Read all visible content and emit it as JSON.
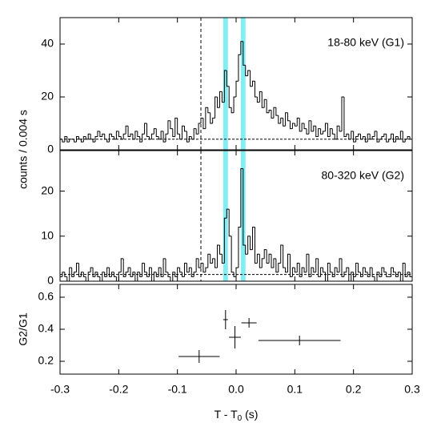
{
  "chart_data": [
    {
      "type": "histogram",
      "label": "18-80 keV (G1)",
      "ylabel": "counts / 0.004 s",
      "color": "#000000",
      "band_color": "#80eef2",
      "bands": [
        [
          -0.022,
          -0.014
        ],
        [
          0.008,
          0.016
        ]
      ],
      "vline": -0.06,
      "baseline": 4,
      "xlim": [
        -0.3,
        0.3
      ],
      "xticks": [
        -0.3,
        -0.2,
        -0.1,
        0,
        0.1,
        0.2,
        0.3
      ],
      "ylim": [
        0,
        50
      ],
      "yticks": [
        0,
        20,
        40
      ],
      "bins": [
        -0.3,
        -0.296,
        -0.292,
        -0.288,
        -0.284,
        -0.28,
        -0.276,
        -0.272,
        -0.268,
        -0.264,
        -0.26,
        -0.256,
        -0.252,
        -0.248,
        -0.244,
        -0.24,
        -0.236,
        -0.232,
        -0.228,
        -0.224,
        -0.22,
        -0.216,
        -0.212,
        -0.208,
        -0.204,
        -0.2,
        -0.196,
        -0.192,
        -0.188,
        -0.184,
        -0.18,
        -0.176,
        -0.172,
        -0.168,
        -0.164,
        -0.16,
        -0.156,
        -0.152,
        -0.148,
        -0.144,
        -0.14,
        -0.136,
        -0.132,
        -0.128,
        -0.124,
        -0.12,
        -0.116,
        -0.112,
        -0.108,
        -0.104,
        -0.1,
        -0.096,
        -0.092,
        -0.088,
        -0.084,
        -0.08,
        -0.076,
        -0.072,
        -0.068,
        -0.064,
        -0.06,
        -0.056,
        -0.052,
        -0.048,
        -0.044,
        -0.04,
        -0.036,
        -0.032,
        -0.028,
        -0.024,
        -0.02,
        -0.016,
        -0.012,
        -0.008,
        -0.004,
        0,
        0.004,
        0.008,
        0.012,
        0.016,
        0.02,
        0.024,
        0.028,
        0.032,
        0.036,
        0.04,
        0.044,
        0.048,
        0.052,
        0.056,
        0.06,
        0.064,
        0.068,
        0.072,
        0.076,
        0.08,
        0.084,
        0.088,
        0.092,
        0.096,
        0.1,
        0.104,
        0.108,
        0.112,
        0.116,
        0.12,
        0.124,
        0.128,
        0.132,
        0.136,
        0.14,
        0.144,
        0.148,
        0.152,
        0.156,
        0.16,
        0.164,
        0.168,
        0.172,
        0.176,
        0.18,
        0.184,
        0.188,
        0.192,
        0.196,
        0.2,
        0.204,
        0.208,
        0.212,
        0.216,
        0.22,
        0.224,
        0.228,
        0.232,
        0.236,
        0.24,
        0.244,
        0.248,
        0.252,
        0.256,
        0.26,
        0.264,
        0.268,
        0.272,
        0.276,
        0.28,
        0.284,
        0.288,
        0.292,
        0.296,
        0.3
      ],
      "values": [
        4,
        3,
        5,
        3,
        4,
        4,
        3,
        5,
        4,
        3,
        5,
        4,
        6,
        4,
        3,
        5,
        7,
        5,
        6,
        4,
        3,
        6,
        5,
        4,
        7,
        5,
        4,
        6,
        9,
        5,
        6,
        4,
        7,
        5,
        3,
        6,
        10,
        5,
        4,
        6,
        8,
        5,
        4,
        7,
        3,
        6,
        11,
        8,
        5,
        12,
        6,
        4,
        9,
        7,
        3,
        5,
        4,
        8,
        6,
        10,
        12,
        8,
        16,
        14,
        10,
        12,
        20,
        16,
        22,
        18,
        30,
        24,
        16,
        14,
        20,
        26,
        36,
        41,
        32,
        28,
        30,
        24,
        26,
        20,
        18,
        22,
        16,
        19,
        14,
        15,
        12,
        16,
        13,
        10,
        12,
        9,
        14,
        11,
        8,
        10,
        9,
        12,
        7,
        10,
        8,
        6,
        11,
        7,
        9,
        5,
        8,
        6,
        7,
        10,
        5,
        8,
        6,
        4,
        9,
        7,
        20,
        5,
        6,
        4,
        7,
        3,
        5,
        6,
        4,
        5,
        3,
        6,
        4,
        5,
        7,
        3,
        4,
        5,
        6,
        3,
        4,
        6,
        3,
        5,
        4,
        7,
        3,
        4,
        5,
        4
      ]
    },
    {
      "type": "histogram",
      "label": "80-320 keV (G2)",
      "color": "#000000",
      "band_color": "#80eef2",
      "bands": [
        [
          -0.022,
          -0.014
        ],
        [
          0.008,
          0.016
        ]
      ],
      "vline": -0.06,
      "baseline": 1.5,
      "xlim": [
        -0.3,
        0.3
      ],
      "xticks": [
        -0.3,
        -0.2,
        -0.1,
        0,
        0.1,
        0.2,
        0.3
      ],
      "ylim": [
        0,
        29
      ],
      "yticks": [
        0,
        10,
        20
      ],
      "bins": [
        -0.3,
        -0.296,
        -0.292,
        -0.288,
        -0.284,
        -0.28,
        -0.276,
        -0.272,
        -0.268,
        -0.264,
        -0.26,
        -0.256,
        -0.252,
        -0.248,
        -0.244,
        -0.24,
        -0.236,
        -0.232,
        -0.228,
        -0.224,
        -0.22,
        -0.216,
        -0.212,
        -0.208,
        -0.204,
        -0.2,
        -0.196,
        -0.192,
        -0.188,
        -0.184,
        -0.18,
        -0.176,
        -0.172,
        -0.168,
        -0.164,
        -0.16,
        -0.156,
        -0.152,
        -0.148,
        -0.144,
        -0.14,
        -0.136,
        -0.132,
        -0.128,
        -0.124,
        -0.12,
        -0.116,
        -0.112,
        -0.108,
        -0.104,
        -0.1,
        -0.096,
        -0.092,
        -0.088,
        -0.084,
        -0.08,
        -0.076,
        -0.072,
        -0.068,
        -0.064,
        -0.06,
        -0.056,
        -0.052,
        -0.048,
        -0.044,
        -0.04,
        -0.036,
        -0.032,
        -0.028,
        -0.024,
        -0.02,
        -0.016,
        -0.012,
        -0.008,
        -0.004,
        0,
        0.004,
        0.008,
        0.012,
        0.016,
        0.02,
        0.024,
        0.028,
        0.032,
        0.036,
        0.04,
        0.044,
        0.048,
        0.052,
        0.056,
        0.06,
        0.064,
        0.068,
        0.072,
        0.076,
        0.08,
        0.084,
        0.088,
        0.092,
        0.096,
        0.1,
        0.104,
        0.108,
        0.112,
        0.116,
        0.12,
        0.124,
        0.128,
        0.132,
        0.136,
        0.14,
        0.144,
        0.148,
        0.152,
        0.156,
        0.16,
        0.164,
        0.168,
        0.172,
        0.176,
        0.18,
        0.184,
        0.188,
        0.192,
        0.196,
        0.2,
        0.204,
        0.208,
        0.212,
        0.216,
        0.22,
        0.224,
        0.228,
        0.232,
        0.236,
        0.24,
        0.244,
        0.248,
        0.252,
        0.256,
        0.26,
        0.264,
        0.268,
        0.272,
        0.276,
        0.28,
        0.284,
        0.288,
        0.292,
        0.296,
        0.3
      ],
      "values": [
        1,
        2,
        1,
        0,
        3,
        1,
        2,
        4,
        1,
        2,
        1,
        0,
        2,
        3,
        1,
        2,
        1,
        0,
        2,
        1,
        3,
        1,
        2,
        1,
        0,
        2,
        5,
        1,
        2,
        3,
        1,
        2,
        0,
        2,
        1,
        4,
        2,
        1,
        3,
        0,
        2,
        1,
        3,
        1,
        5,
        2,
        1,
        0,
        2,
        1,
        3,
        2,
        1,
        4,
        2,
        3,
        1,
        2,
        5,
        3,
        4,
        2,
        3,
        6,
        4,
        5,
        3,
        8,
        6,
        4,
        14,
        16,
        10,
        2,
        1,
        3,
        12,
        25,
        8,
        6,
        10,
        7,
        12,
        4,
        6,
        3,
        5,
        7,
        4,
        6,
        3,
        5,
        2,
        4,
        8,
        3,
        2,
        6,
        1,
        3,
        2,
        4,
        1,
        3,
        2,
        6,
        1,
        3,
        2,
        5,
        1,
        3,
        2,
        0,
        4,
        2,
        1,
        3,
        2,
        5,
        1,
        2,
        3,
        0,
        2,
        1,
        4,
        2,
        1,
        3,
        2,
        1,
        3,
        1,
        0,
        2,
        1,
        3,
        2,
        1,
        1,
        3,
        2,
        1,
        2,
        0,
        4,
        1,
        2,
        1
      ]
    },
    {
      "type": "errorbar",
      "ylabel": "G2/G1",
      "xlabel": "T - T",
      "xlabel_sub": "0",
      "xlabel_end": " (s)",
      "color": "#000000",
      "xlim": [
        -0.3,
        0.3
      ],
      "xticks": [
        -0.3,
        -0.2,
        -0.1,
        {
          "value": 0,
          "label": "0.0"
        },
        0.1,
        0.2,
        0.3
      ],
      "ylim": [
        0.12,
        0.68
      ],
      "yticks": [
        0.2,
        0.4,
        0.6
      ],
      "x": [
        -0.063,
        -0.018,
        -0.002,
        0.022,
        0.108
      ],
      "xerr": [
        0.035,
        0.004,
        0.01,
        0.013,
        0.07
      ],
      "values": [
        0.23,
        0.46,
        0.35,
        0.44,
        0.33
      ],
      "yerr": [
        0.04,
        0.06,
        0.07,
        0.03,
        0.03
      ]
    }
  ]
}
